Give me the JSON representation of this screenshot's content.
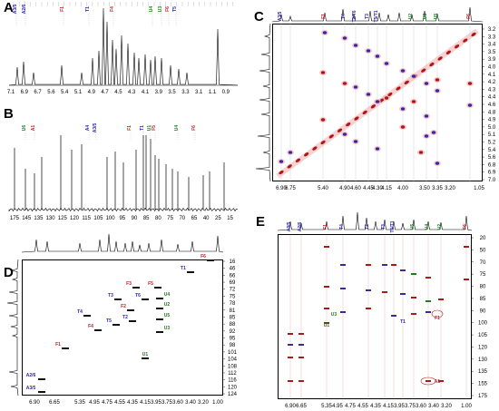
{
  "panels": [
    {
      "id": "A",
      "label": "A",
      "type": "1H",
      "axis_ticks": [
        "7.1",
        "6.9",
        "6.7",
        "5.6",
        "5.4",
        "5.1",
        "4.9",
        "4.7",
        "4.5",
        "4.3",
        "4.1",
        "3.9",
        "3.5",
        "3.3",
        "3.1",
        "1.1",
        "0.9"
      ],
      "tags": [
        {
          "t": "A3/5",
          "c": "blue"
        },
        {
          "t": "A2/6",
          "c": "blue"
        },
        {
          "t": "F1",
          "c": "red"
        },
        {
          "t": "T1",
          "c": "blue"
        },
        {
          "t": "F4",
          "c": "red"
        },
        {
          "t": "U4",
          "c": "green"
        },
        {
          "t": "U3",
          "c": "green"
        },
        {
          "t": "F6",
          "c": "red"
        },
        {
          "t": "T5",
          "c": "blue"
        }
      ]
    },
    {
      "id": "B",
      "label": "B",
      "type": "13C",
      "axis_ticks": [
        "175",
        "145",
        "135",
        "130",
        "125",
        "120",
        "115",
        "105",
        "100",
        "95",
        "90",
        "85",
        "80",
        "75",
        "70",
        "65",
        "40",
        "25",
        "15"
      ],
      "tags": [
        {
          "t": "U6",
          "c": "green"
        },
        {
          "t": "A1",
          "c": "red"
        },
        {
          "t": "A4",
          "c": "blue"
        },
        {
          "t": "A3/5",
          "c": "blue"
        },
        {
          "t": "F1",
          "c": "red"
        },
        {
          "t": "T1",
          "c": "blue"
        },
        {
          "t": "U1",
          "c": "green"
        },
        {
          "t": "F5",
          "c": "red"
        },
        {
          "t": "U4",
          "c": "green"
        },
        {
          "t": "F6",
          "c": "red"
        }
      ]
    },
    {
      "id": "C",
      "label": "C",
      "type": "COSY",
      "x_ticks": [
        "6.90",
        "6.75",
        "5.40",
        "4.90",
        "4.60",
        "4.45",
        "4.30",
        "4.15",
        "4.00",
        "3.50",
        "3.35",
        "3.20",
        "1.05"
      ],
      "y_ticks": [
        "3.2",
        "3.3",
        "3.4",
        "3.5",
        "3.9",
        "4.0",
        "4.1",
        "4.2",
        "4.3",
        "4.4",
        "4.6",
        "4.8",
        "4.9",
        "5.0",
        "5.1",
        "5.2",
        "5.4",
        "5.6",
        "6.8",
        "6.9",
        "7.0"
      ],
      "top_tags": [
        "A3/5",
        "F1",
        "T4",
        "T2/T6",
        "T3",
        "T5/T1",
        "U2",
        "U3",
        "U5",
        "F6"
      ]
    },
    {
      "id": "D",
      "label": "D",
      "type": "HSQC",
      "x_ticks": [
        "6.90",
        "6.65",
        "5.35",
        "4.95",
        "4.75",
        "4.55",
        "4.35",
        "4.15",
        "3.95",
        "3.75",
        "3.60",
        "3.40",
        "3.20",
        "1.00"
      ],
      "y_ticks": [
        "16",
        "46",
        "66",
        "69",
        "72",
        "75",
        "78",
        "81",
        "85",
        "88",
        "92",
        "95",
        "98",
        "101",
        "104",
        "108",
        "112",
        "116",
        "120",
        "124"
      ],
      "peaks": [
        "F6",
        "T1",
        "F3",
        "F5",
        "U4",
        "T6",
        "T3",
        "F2",
        "U2",
        "U5",
        "T4",
        "T2",
        "T5",
        "F4",
        "U3",
        "F1",
        "U1",
        "A2/6",
        "A3/5"
      ]
    },
    {
      "id": "E",
      "label": "E",
      "type": "HMBC",
      "x_ticks": [
        "6.90",
        "6.65",
        "5.35",
        "4.95",
        "4.75",
        "4.55",
        "4.35",
        "4.15",
        "3.95",
        "3.75",
        "3.60",
        "3.40",
        "3.20",
        "1.00"
      ],
      "y_ticks": [
        "20",
        "50",
        "70",
        "75",
        "80",
        "85",
        "90",
        "100",
        "105",
        "120",
        "130",
        "135",
        "155",
        "175"
      ],
      "peaks": [
        "A1",
        "F1",
        "U1",
        "T1",
        "U3"
      ]
    }
  ],
  "colors": {
    "blue": "#2a2aa8",
    "red": "#c02020",
    "green": "#1e7a1e",
    "peak_blue": "#3a2aa0",
    "peak_red": "#b01818",
    "pink": "#f5b5b5"
  }
}
